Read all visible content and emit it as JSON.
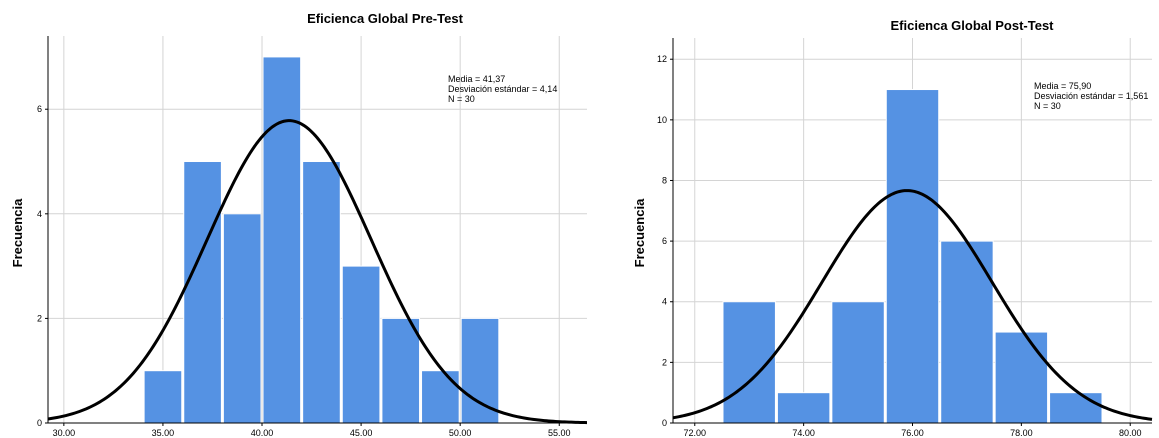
{
  "chart_data": [
    {
      "type": "bar",
      "title": "Eficienca Global  Pre-Test",
      "ylabel": "Frecuencia",
      "xlabel": "",
      "xlim": [
        29.2,
        56.4
      ],
      "ylim": [
        0,
        7.4
      ],
      "x_ticks": [
        30,
        35,
        40,
        45,
        50,
        55
      ],
      "x_tick_labels": [
        "30.00",
        "35.00",
        "40.00",
        "45.00",
        "50.00",
        "55.00"
      ],
      "y_ticks": [
        0,
        2,
        4,
        6
      ],
      "y_tick_labels": [
        "0",
        "2",
        "4",
        "6"
      ],
      "bins": [
        {
          "from": 34,
          "to": 36,
          "count": 1
        },
        {
          "from": 36,
          "to": 38,
          "count": 5
        },
        {
          "from": 38,
          "to": 40,
          "count": 4
        },
        {
          "from": 40,
          "to": 42,
          "count": 7
        },
        {
          "from": 42,
          "to": 44,
          "count": 5
        },
        {
          "from": 44,
          "to": 46,
          "count": 3
        },
        {
          "from": 46,
          "to": 48,
          "count": 2
        },
        {
          "from": 48,
          "to": 50,
          "count": 1
        },
        {
          "from": 50,
          "to": 52,
          "count": 2
        }
      ],
      "normal_curve": {
        "mean": 41.37,
        "sd": 4.14,
        "n": 30
      },
      "stats_text": [
        "Media = 41,37",
        "Desviación estándar = 4,14",
        "N = 30"
      ],
      "grid": true,
      "bar_color": "#5592e3",
      "curve_color": "#000000"
    },
    {
      "type": "bar",
      "title": "Eficienca Global Post-Test",
      "ylabel": "Frecuencia",
      "xlabel": "",
      "xlim": [
        71.6,
        80.4
      ],
      "ylim": [
        0,
        12.7
      ],
      "x_ticks": [
        72,
        74,
        76,
        78,
        80
      ],
      "x_tick_labels": [
        "72.00",
        "74.00",
        "76.00",
        "78.00",
        "80.00"
      ],
      "y_ticks": [
        0,
        2,
        4,
        6,
        8,
        10,
        12
      ],
      "y_tick_labels": [
        "0",
        "2",
        "4",
        "6",
        "8",
        "10",
        "12"
      ],
      "bins": [
        {
          "from": 72.5,
          "to": 73.5,
          "count": 4
        },
        {
          "from": 73.5,
          "to": 74.5,
          "count": 1
        },
        {
          "from": 74.5,
          "to": 75.5,
          "count": 4
        },
        {
          "from": 75.5,
          "to": 76.5,
          "count": 11
        },
        {
          "from": 76.5,
          "to": 77.5,
          "count": 6
        },
        {
          "from": 77.5,
          "to": 78.5,
          "count": 3
        },
        {
          "from": 78.5,
          "to": 79.5,
          "count": 1
        }
      ],
      "normal_curve": {
        "mean": 75.9,
        "sd": 1.561,
        "n": 30
      },
      "stats_text": [
        "Media = 75,90",
        "Desviación estándar = 1,561",
        "N = 30"
      ],
      "grid": true,
      "bar_color": "#5592e3",
      "curve_color": "#000000"
    }
  ]
}
